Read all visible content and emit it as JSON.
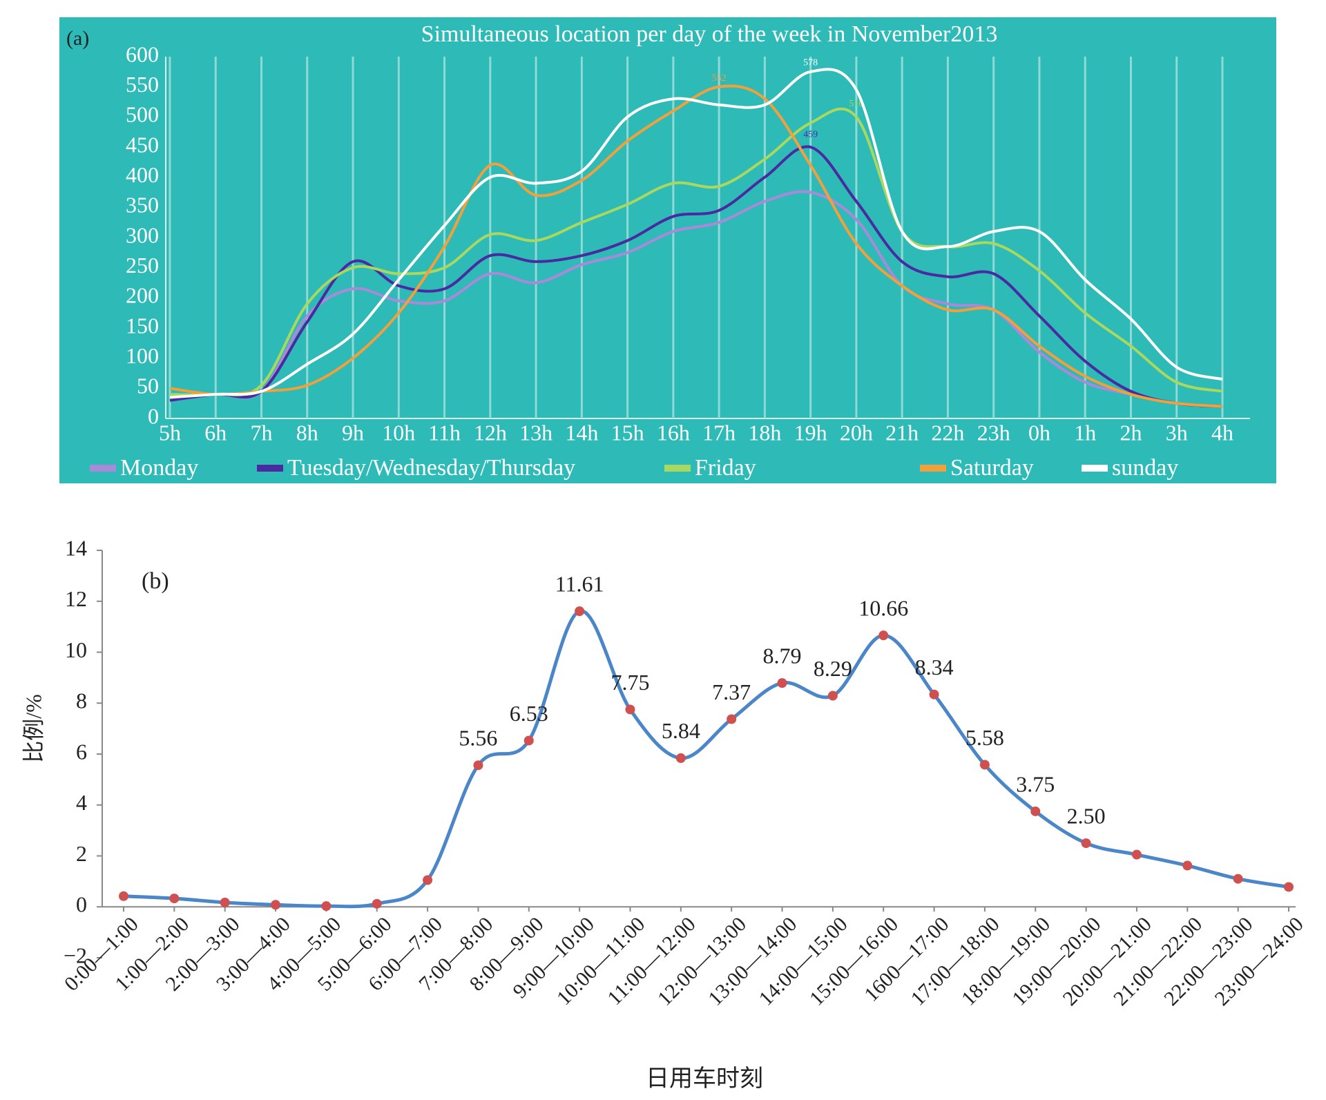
{
  "chart_data": [
    {
      "type": "line",
      "annotation": "(a)",
      "title": "Simultaneous location per day of the week in November2013",
      "categories": [
        "5h",
        "6h",
        "7h",
        "8h",
        "9h",
        "10h",
        "11h",
        "12h",
        "13h",
        "14h",
        "15h",
        "16h",
        "17h",
        "18h",
        "19h",
        "20h",
        "21h",
        "22h",
        "23h",
        "0h",
        "1h",
        "2h",
        "3h",
        "4h"
      ],
      "ylim": [
        0,
        600
      ],
      "yticks": [
        0,
        50,
        100,
        150,
        200,
        250,
        300,
        350,
        400,
        450,
        500,
        550,
        600
      ],
      "grid": true,
      "series": [
        {
          "name": "Monday",
          "color": "#a98ad8",
          "values": [
            30,
            40,
            45,
            170,
            215,
            195,
            195,
            240,
            225,
            255,
            275,
            310,
            325,
            360,
            375,
            330,
            220,
            190,
            180,
            110,
            60,
            40,
            25,
            20
          ]
        },
        {
          "name": "Tuesday/Wednesday/Thursday",
          "color": "#4a2aa0",
          "peak_label": 459,
          "values": [
            30,
            40,
            45,
            160,
            260,
            220,
            215,
            270,
            260,
            270,
            295,
            335,
            345,
            400,
            450,
            360,
            260,
            235,
            240,
            170,
            95,
            45,
            25,
            20
          ]
        },
        {
          "name": "Friday",
          "color": "#a8d860",
          "peak_label": 510,
          "values": [
            40,
            40,
            55,
            190,
            250,
            240,
            250,
            305,
            295,
            325,
            355,
            390,
            385,
            430,
            490,
            500,
            310,
            285,
            290,
            245,
            175,
            120,
            60,
            45
          ]
        },
        {
          "name": "Saturday",
          "color": "#f2a03c",
          "peak_label": 552,
          "values": [
            50,
            40,
            45,
            55,
            100,
            175,
            285,
            420,
            370,
            395,
            460,
            510,
            550,
            530,
            420,
            290,
            220,
            180,
            180,
            120,
            70,
            40,
            25,
            20
          ]
        },
        {
          "name": "sunday",
          "color": "#ffffff",
          "peak_label": 578,
          "values": [
            35,
            40,
            45,
            90,
            140,
            230,
            320,
            400,
            390,
            410,
            500,
            530,
            520,
            520,
            575,
            545,
            310,
            285,
            310,
            310,
            230,
            165,
            85,
            65
          ]
        }
      ]
    },
    {
      "type": "line",
      "annotation": "(b)",
      "x_label": "日用车时刻",
      "y_label": "比例/%",
      "color": "#4a86c8",
      "marker_color": "#d05050",
      "categories": [
        "0:00—1:00",
        "1:00—2:00",
        "2:00—3:00",
        "3:00—4:00",
        "4:00—5:00",
        "5:00—6:00",
        "6:00—7:00",
        "7:00—8:00",
        "8:00—9:00",
        "9:00—10:00",
        "10:00—11:00",
        "11:00—12:00",
        "12:00—13:00",
        "13:00—14:00",
        "14:00—15:00",
        "15:00—16:00",
        "1600—17:00",
        "17:00—18:00",
        "18:00—19:00",
        "19:00—20:00",
        "20:00—21:00",
        "21:00—22:00",
        "22:00—23:00",
        "23:00—24:00"
      ],
      "values": [
        0.42,
        0.33,
        0.17,
        0.08,
        0.03,
        0.12,
        1.05,
        5.56,
        6.53,
        11.61,
        7.75,
        5.84,
        7.37,
        8.79,
        8.29,
        10.66,
        8.34,
        5.58,
        3.75,
        2.5,
        2.05,
        1.62,
        1.1,
        0.78
      ],
      "value_labels": [
        null,
        null,
        null,
        null,
        null,
        null,
        null,
        "5.56",
        "6.53",
        "11.61",
        "7.75",
        "5.84",
        "7.37",
        "8.79",
        "8.29",
        "10.66",
        "8.34",
        "5.58",
        "3.75",
        "2.50",
        null,
        null,
        null,
        null
      ],
      "ylim": [
        -2,
        14
      ],
      "yticks": [
        {
          "value": -2,
          "label": "−2"
        },
        0,
        2,
        4,
        6,
        8,
        10,
        12,
        14
      ]
    }
  ]
}
